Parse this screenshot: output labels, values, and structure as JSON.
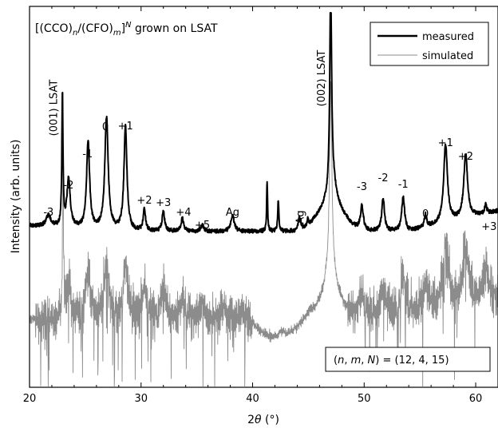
{
  "chart_data": {
    "type": "line",
    "title_parts": {
      "open": "[(CCO)",
      "n": "n",
      "slash": "/(CFO)",
      "m": "m",
      "close": "]",
      "N": "N",
      "rest": " grown on LSAT"
    },
    "xlabel_prefix": "2",
    "xlabel_theta": "θ",
    "xlabel_suffix": " (°)",
    "ylabel": "Intensity (arb. units)",
    "xlim": [
      20,
      62
    ],
    "x_ticks": [
      20,
      30,
      40,
      50,
      60
    ],
    "x_tick_labels": [
      "20",
      "30",
      "40",
      "50",
      "60"
    ],
    "y_scale": "log",
    "y_tick_labels_shown": false,
    "grid": false,
    "legend_position": "top-right",
    "series": [
      {
        "name": "measured",
        "color": "#000000",
        "peaks_2theta": [
          22.95,
          23.5,
          25.25,
          26.9,
          28.6,
          30.3,
          32.0,
          33.7,
          35.5,
          38.2,
          41.3,
          42.3,
          44.2,
          44.95,
          47.0,
          49.8,
          51.7,
          53.5,
          55.5,
          57.3,
          59.1,
          60.9
        ]
      },
      {
        "name": "simulated",
        "color": "#8c8c8c",
        "peaks_2theta": [
          23.0,
          23.5,
          25.25,
          26.9,
          28.6,
          30.3,
          32.0,
          33.7,
          35.5,
          37.3,
          39.0,
          42.6,
          47.0,
          49.8,
          51.7,
          53.5,
          55.5,
          57.3,
          59.1,
          60.9
        ]
      }
    ],
    "annotations": [
      {
        "text": "(001) LSAT",
        "x": 22.2,
        "rotated": true
      },
      {
        "text": "-3",
        "x": 21.7,
        "rotated": false
      },
      {
        "text": "-2",
        "x": 23.5,
        "rotated": false
      },
      {
        "text": "-1",
        "x": 25.2,
        "rotated": false
      },
      {
        "text": "0",
        "x": 26.8,
        "rotated": false
      },
      {
        "text": "+1",
        "x": 28.6,
        "rotated": false
      },
      {
        "text": "+2",
        "x": 30.3,
        "rotated": false
      },
      {
        "text": "+3",
        "x": 32.0,
        "rotated": false
      },
      {
        "text": "+4",
        "x": 33.8,
        "rotated": false
      },
      {
        "text": "+5",
        "x": 35.5,
        "rotated": false
      },
      {
        "text": "Ag",
        "x": 38.2,
        "rotated": false
      },
      {
        "text": "Ag",
        "x": 44.3,
        "rotated": true
      },
      {
        "text": "(002) LSAT",
        "x": 46.2,
        "rotated": true
      },
      {
        "text": "-3",
        "x": 49.8,
        "rotated": false
      },
      {
        "text": "-2",
        "x": 51.7,
        "rotated": false
      },
      {
        "text": "-1",
        "x": 53.5,
        "rotated": false
      },
      {
        "text": "0",
        "x": 55.5,
        "rotated": false
      },
      {
        "text": "+1",
        "x": 57.3,
        "rotated": false
      },
      {
        "text": "+2",
        "x": 59.1,
        "rotated": false
      },
      {
        "text": "+3",
        "x": 61.2,
        "rotated": false
      }
    ],
    "params_box": {
      "open": "(",
      "n": "n",
      "sep1": ", ",
      "m": "m",
      "sep2": ", ",
      "N": "N",
      "close": ") = (12, 4, 15)",
      "position": "bottom-right"
    }
  }
}
